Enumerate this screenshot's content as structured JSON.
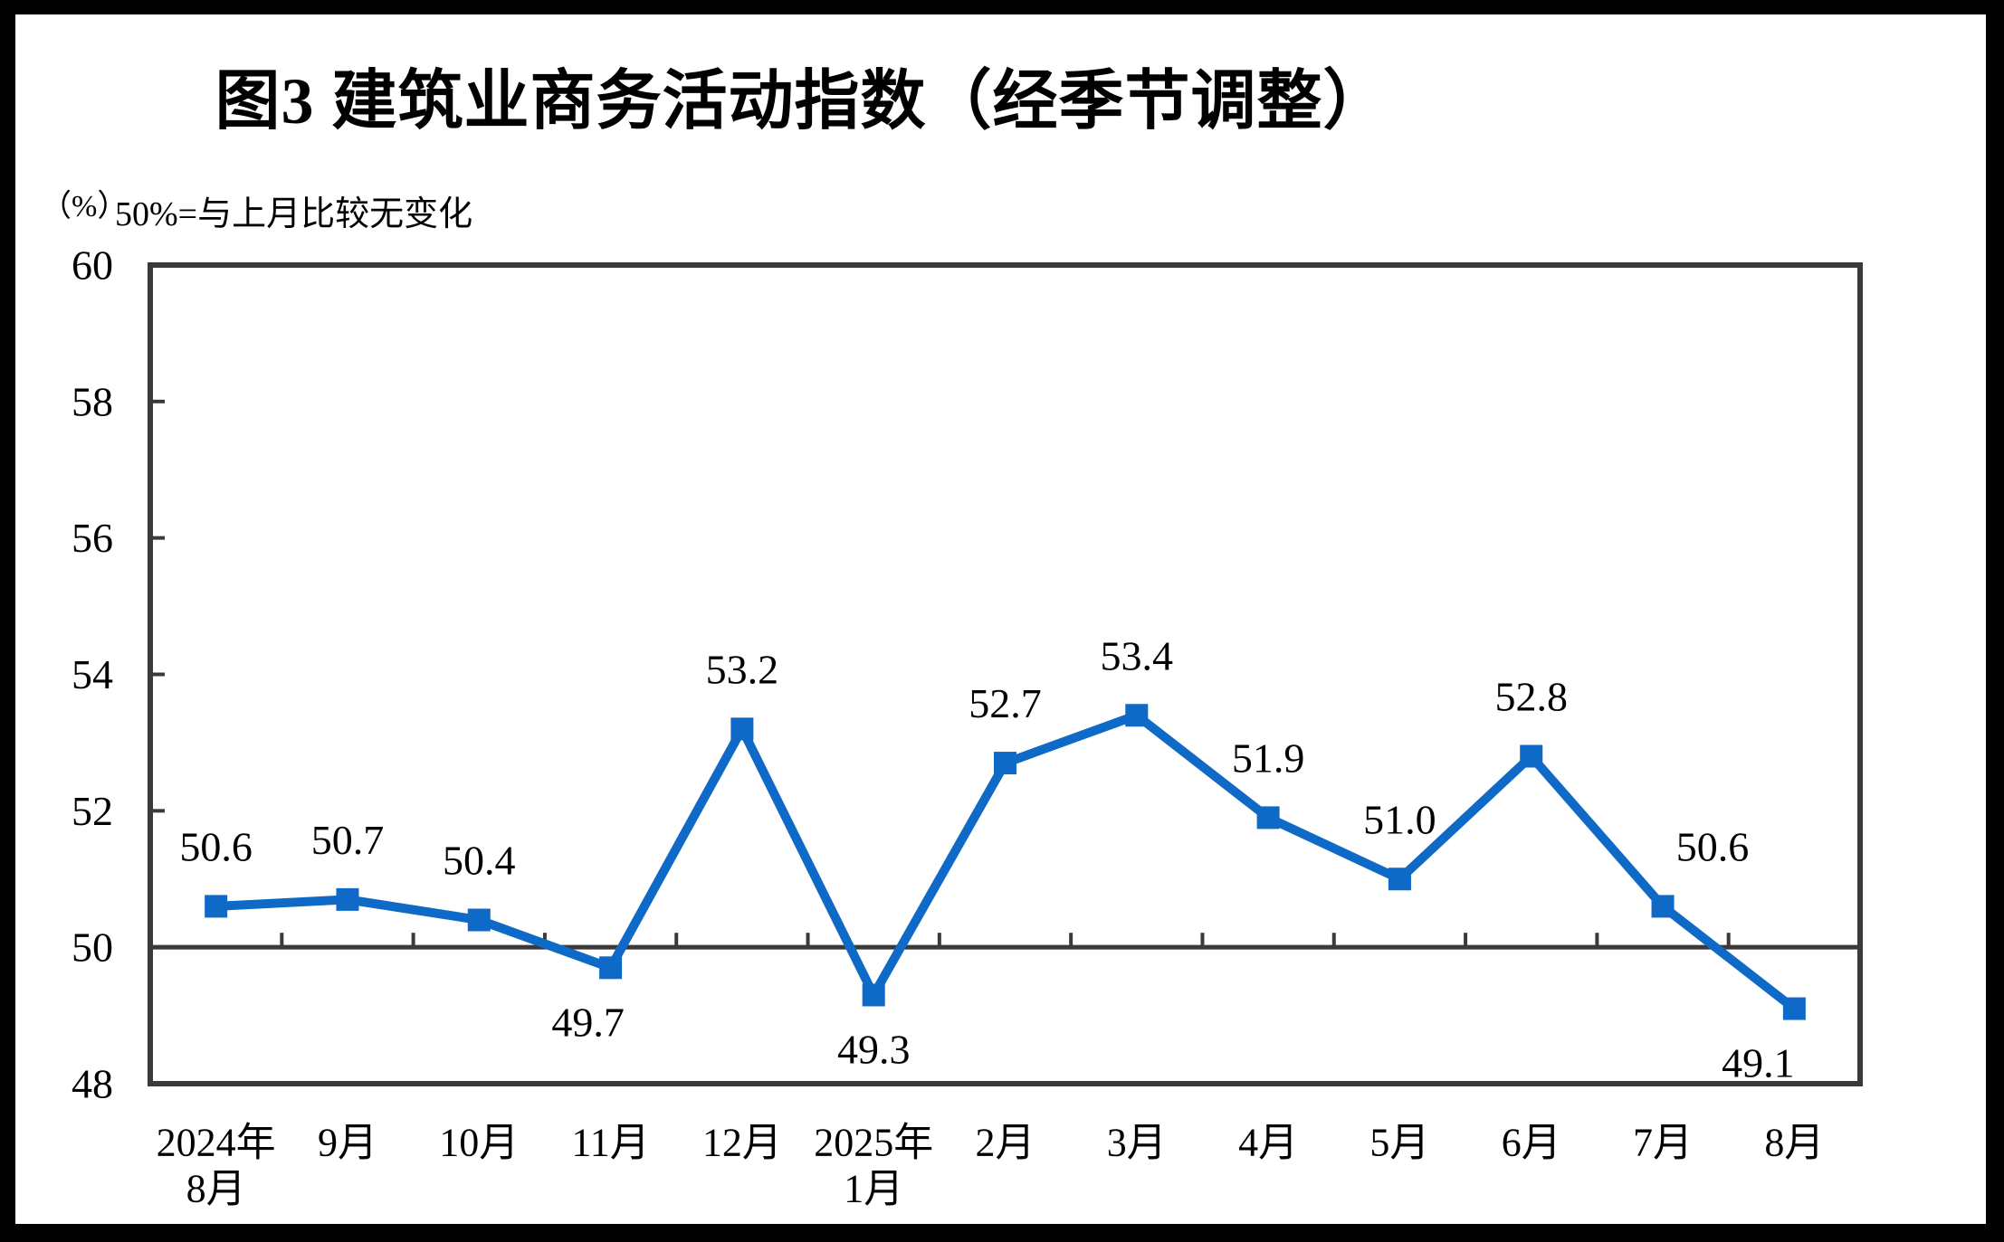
{
  "page": {
    "title": "图3  建筑业商务活动指数（经季节调整）",
    "unit_label": "（%）",
    "reference_note": "50%=与上月比较无变化"
  },
  "chart_data": {
    "type": "line",
    "title": "图3 建筑业商务活动指数（经季节调整）",
    "unit": "%",
    "note": "50%=与上月比较无变化",
    "categories": [
      [
        "2024年",
        "8月"
      ],
      [
        "9月"
      ],
      [
        "10月"
      ],
      [
        "11月"
      ],
      [
        "12月"
      ],
      [
        "2025年",
        "1月"
      ],
      [
        "2月"
      ],
      [
        "3月"
      ],
      [
        "4月"
      ],
      [
        "5月"
      ],
      [
        "6月"
      ],
      [
        "7月"
      ],
      [
        "8月"
      ]
    ],
    "values": [
      50.6,
      50.7,
      50.4,
      49.7,
      53.2,
      49.3,
      52.7,
      53.4,
      51.9,
      51.0,
      52.8,
      50.6,
      49.1
    ],
    "data_labels": [
      "50.6",
      "50.7",
      "50.4",
      "49.7",
      "53.2",
      "49.3",
      "52.7",
      "53.4",
      "51.9",
      "51.0",
      "52.8",
      "50.6",
      "49.1"
    ],
    "label_position": [
      "above",
      "above",
      "above",
      "below",
      "above",
      "below",
      "above",
      "above",
      "above",
      "above",
      "above",
      "above",
      "below"
    ],
    "label_dx": [
      0,
      0,
      0,
      -25,
      0,
      0,
      0,
      0,
      0,
      0,
      0,
      55,
      -40
    ],
    "ylim": [
      48,
      60
    ],
    "y_ticks": [
      48,
      50,
      52,
      54,
      56,
      58,
      60
    ],
    "reference_line": 50,
    "grid": "off",
    "legend": "none",
    "marker": "square",
    "series_color": "#0E6AC6",
    "axis_color": "#3A3A3A",
    "text_color": "#000000"
  }
}
